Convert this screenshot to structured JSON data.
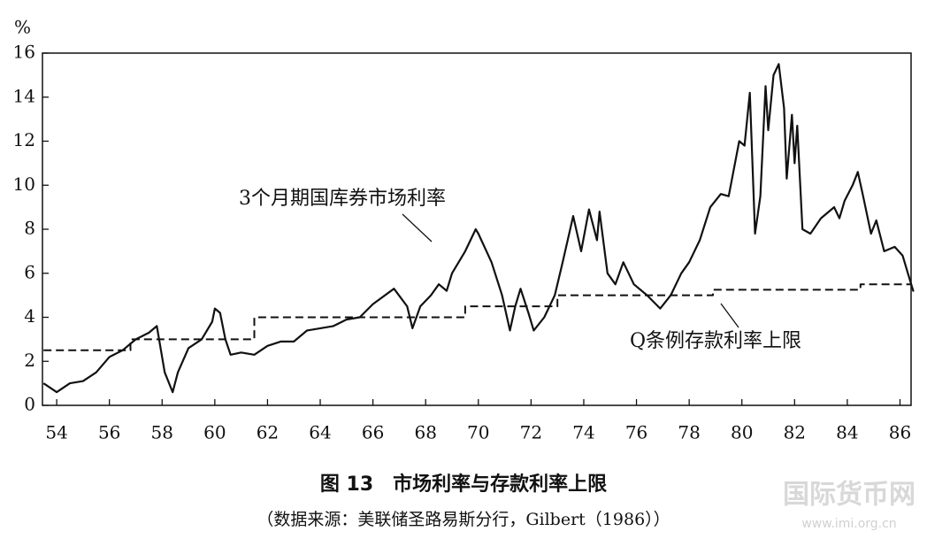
{
  "chart_data": {
    "type": "line",
    "ylabel": "%",
    "caption": "图 13　市场利率与存款利率上限",
    "source": "（数据来源：美联储圣路易斯分行，Gilbert（1986））",
    "watermark": "国际货币网",
    "watermark_url": "www.imi.org.cn",
    "annotations": [
      "3个月期国库券市场利率",
      "Q条例存款利率上限"
    ],
    "xlim": [
      53.46,
      86.42
    ],
    "xticks": [
      54,
      56,
      58,
      60,
      62,
      64,
      66,
      68,
      70,
      72,
      74,
      76,
      78,
      80,
      82,
      84,
      86
    ],
    "ylim": [
      0,
      16
    ],
    "yticks": [
      0,
      2,
      4,
      6,
      8,
      10,
      12,
      14,
      16
    ],
    "series": [
      {
        "name": "3个月期国库券市场利率",
        "color": "#111111",
        "dash": false,
        "x": [
          53.5,
          54.0,
          54.5,
          55.0,
          55.5,
          56.0,
          56.5,
          57.0,
          57.5,
          57.8,
          58.1,
          58.4,
          58.6,
          59.0,
          59.5,
          59.9,
          60.0,
          60.2,
          60.4,
          60.6,
          61.0,
          61.5,
          62.0,
          62.5,
          63.0,
          63.5,
          64.0,
          64.5,
          65.0,
          65.5,
          66.0,
          66.8,
          67.3,
          67.5,
          67.8,
          68.2,
          68.5,
          68.8,
          69.0,
          69.5,
          69.9,
          70.0,
          70.5,
          70.9,
          71.2,
          71.4,
          71.6,
          71.9,
          72.1,
          72.5,
          72.9,
          73.2,
          73.6,
          73.9,
          74.2,
          74.5,
          74.6,
          74.9,
          75.2,
          75.5,
          75.9,
          76.4,
          76.9,
          77.3,
          77.7,
          78.0,
          78.4,
          78.8,
          79.2,
          79.5,
          79.9,
          80.1,
          80.3,
          80.5,
          80.7,
          80.9,
          81.0,
          81.2,
          81.4,
          81.6,
          81.7,
          81.9,
          82.0,
          82.1,
          82.3,
          82.6,
          83.0,
          83.5,
          83.7,
          83.9,
          84.2,
          84.4,
          84.6,
          84.9,
          85.1,
          85.4,
          85.8,
          86.1,
          86.3,
          86.5,
          86.4
        ],
        "values": [
          1.0,
          0.6,
          1.0,
          1.1,
          1.5,
          2.2,
          2.5,
          3.0,
          3.3,
          3.6,
          1.5,
          0.6,
          1.5,
          2.6,
          3.0,
          3.8,
          4.4,
          4.2,
          3.0,
          2.3,
          2.4,
          2.3,
          2.7,
          2.9,
          2.9,
          3.4,
          3.5,
          3.6,
          3.9,
          4.0,
          4.6,
          5.3,
          4.5,
          3.5,
          4.5,
          5.0,
          5.5,
          5.2,
          6.0,
          7.0,
          8.0,
          7.8,
          6.5,
          5.0,
          3.4,
          4.5,
          5.3,
          4.2,
          3.4,
          4.0,
          5.0,
          6.5,
          8.6,
          7.0,
          8.9,
          7.5,
          8.8,
          6.0,
          5.5,
          6.5,
          5.5,
          5.0,
          4.4,
          5.0,
          6.0,
          6.5,
          7.5,
          9.0,
          9.6,
          9.5,
          12.0,
          11.8,
          14.2,
          7.8,
          9.5,
          14.5,
          12.5,
          15.0,
          15.5,
          13.5,
          10.3,
          13.2,
          11.0,
          12.7,
          8.0,
          7.8,
          8.5,
          9.0,
          8.5,
          9.3,
          10.0,
          10.6,
          9.5,
          7.8,
          8.4,
          7.0,
          7.2,
          6.8,
          6.0,
          5.2,
          5.6
        ]
      },
      {
        "name": "Q条例存款利率上限",
        "color": "#111111",
        "dash": true,
        "x": [
          53.5,
          56.8,
          56.8,
          61.5,
          61.5,
          69.5,
          69.5,
          73.0,
          73.0,
          78.9,
          78.9,
          84.5,
          84.5,
          86.4
        ],
        "values": [
          2.5,
          2.5,
          3.0,
          3.0,
          4.0,
          4.0,
          4.5,
          4.5,
          5.0,
          5.0,
          5.25,
          5.25,
          5.5,
          5.5
        ]
      }
    ]
  }
}
